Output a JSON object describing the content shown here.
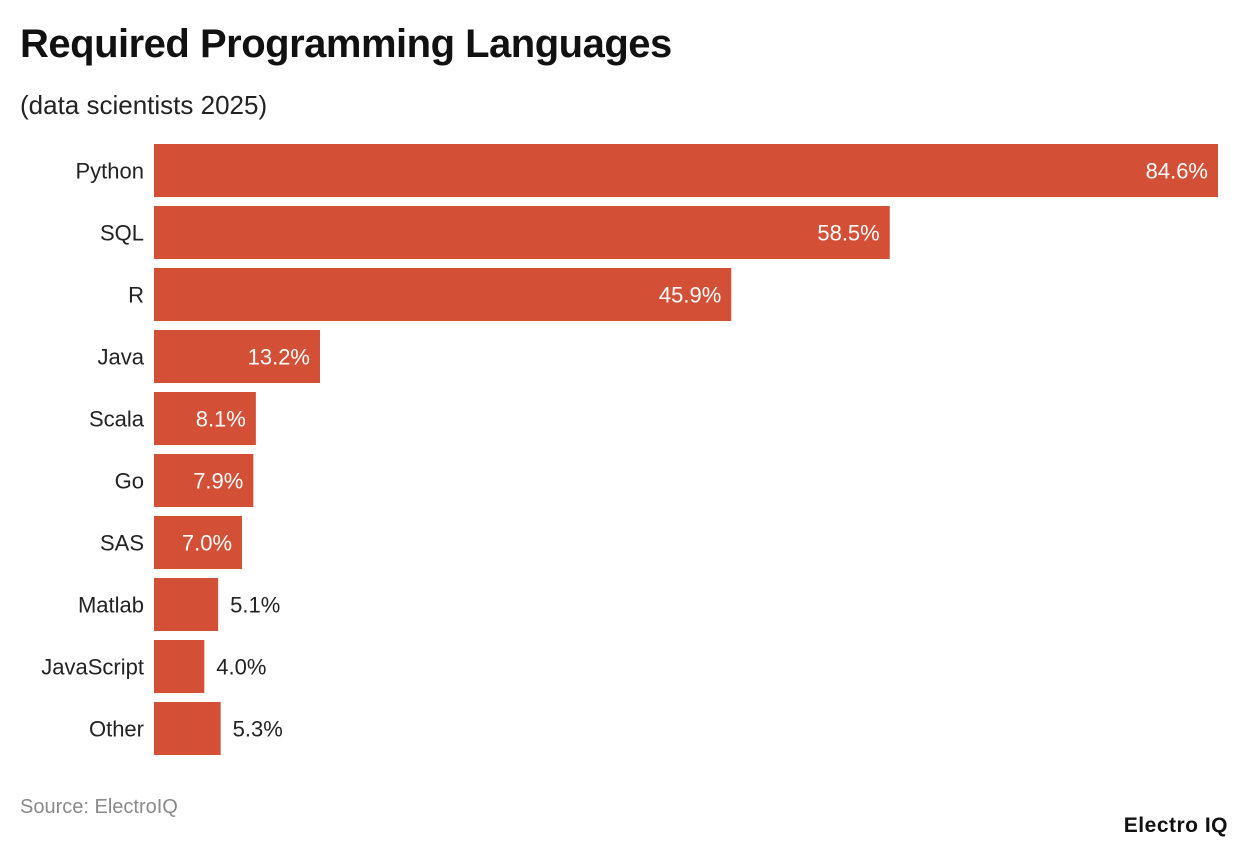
{
  "chart_data": {
    "type": "bar",
    "orientation": "horizontal",
    "title": "Required Programming Languages",
    "subtitle": "(data scientists 2025)",
    "categories": [
      "Python",
      "SQL",
      "R",
      "Java",
      "Scala",
      "Go",
      "SAS",
      "Matlab",
      "JavaScript",
      "Other"
    ],
    "values": [
      84.6,
      58.5,
      45.9,
      13.2,
      8.1,
      7.9,
      7.0,
      5.1,
      4.0,
      5.3
    ],
    "value_labels": [
      "84.6%",
      "58.5%",
      "45.9%",
      "13.2%",
      "8.1%",
      "7.9%",
      "7.0%",
      "5.1%",
      "4.0%",
      "5.3%"
    ],
    "xlim": [
      0,
      84.6
    ],
    "grid": false,
    "bar_color": "#d35037",
    "source": "Source: ElectroIQ"
  },
  "logo": "Electro IQ"
}
